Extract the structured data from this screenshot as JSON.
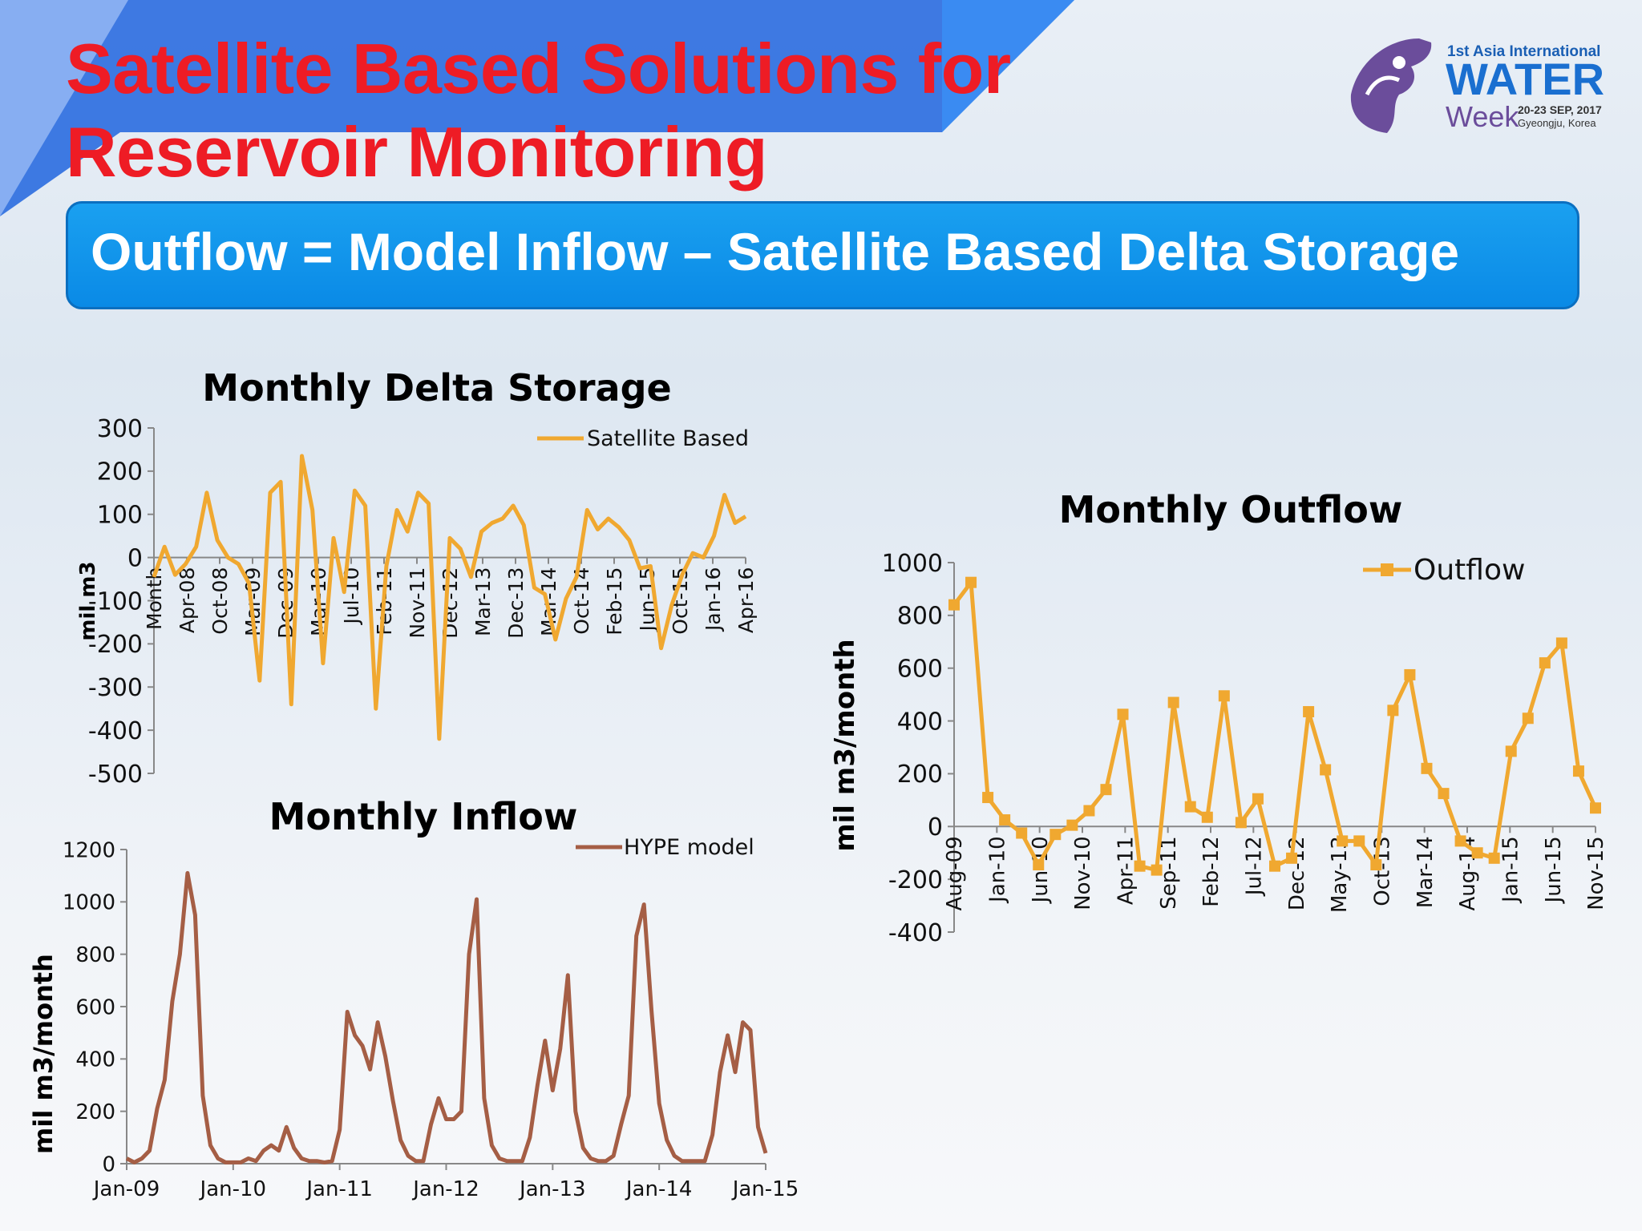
{
  "slide": {
    "title_line1": "Satellite Based Solutions for",
    "title_line2": "Reservoir Monitoring",
    "banner": "Outflow = Model Inflow – Satellite Based Delta Storage",
    "colors": {
      "title": "#ee1c25",
      "banner": "#0a8ae6",
      "corner": "#2f6fe0"
    }
  },
  "logo": {
    "line1": "1st Asia International",
    "line2": "WATER",
    "line3": "Week",
    "date": "20-23 SEP, 2017",
    "place": "Gyeongju, Korea"
  },
  "chart_data": [
    {
      "type": "line",
      "title": "Monthly Delta Storage",
      "ylabel": "mil m3",
      "ylim": [
        -500,
        300
      ],
      "yticks": [
        300,
        200,
        100,
        0,
        -100,
        -200,
        -300,
        -400,
        -500
      ],
      "x_tick_labels": [
        "Month",
        "Apr-08",
        "Oct-08",
        "Mar-09",
        "Dec-09",
        "Mar-10",
        "Jul-10",
        "Feb-11",
        "Nov-11",
        "Dec-12",
        "Mar-13",
        "Dec-13",
        "Mar-14",
        "Oct-14",
        "Feb-15",
        "Jun-15",
        "Oct-15",
        "Jan-16",
        "Apr-16"
      ],
      "legend": "top-right",
      "color": "#f0a830",
      "series": [
        {
          "name": "Satellite Based",
          "values": [
            -45,
            25,
            -40,
            -15,
            25,
            150,
            40,
            0,
            -15,
            -60,
            -285,
            150,
            175,
            -340,
            235,
            110,
            -245,
            45,
            -80,
            155,
            120,
            -350,
            -20,
            110,
            60,
            150,
            125,
            -420,
            45,
            20,
            -45,
            60,
            80,
            90,
            120,
            75,
            -70,
            -85,
            -190,
            -95,
            -45,
            110,
            65,
            90,
            70,
            40,
            -25,
            -20,
            -210,
            -110,
            -40,
            10,
            0,
            50,
            145,
            80,
            95
          ]
        }
      ]
    },
    {
      "type": "line",
      "title": "Monthly Inflow",
      "ylabel": "mil m3/month",
      "ylim": [
        0,
        1200
      ],
      "yticks": [
        1200,
        1000,
        800,
        600,
        400,
        200,
        0
      ],
      "x_tick_labels": [
        "Jan-09",
        "Jan-10",
        "Jan-11",
        "Jan-12",
        "Jan-13",
        "Jan-14",
        "Jan-15"
      ],
      "legend": "top-right",
      "color": "#a55e45",
      "series": [
        {
          "name": "HYPE model",
          "values": [
            20,
            5,
            20,
            50,
            210,
            320,
            620,
            800,
            1110,
            950,
            260,
            70,
            20,
            5,
            5,
            5,
            20,
            10,
            50,
            70,
            50,
            140,
            60,
            20,
            10,
            10,
            5,
            10,
            130,
            580,
            490,
            450,
            360,
            540,
            410,
            240,
            90,
            30,
            10,
            10,
            150,
            250,
            170,
            170,
            200,
            800,
            1010,
            250,
            70,
            20,
            10,
            10,
            10,
            100,
            300,
            470,
            280,
            440,
            720,
            200,
            60,
            20,
            10,
            10,
            30,
            150,
            260,
            870,
            990,
            580,
            230,
            90,
            30,
            10,
            10,
            10,
            10,
            110,
            350,
            490,
            350,
            540,
            510,
            140,
            40
          ]
        }
      ]
    },
    {
      "type": "line",
      "title": "Monthly Outflow",
      "ylabel": "mil m3/month",
      "ylim": [
        -400,
        1000
      ],
      "yticks": [
        1000,
        800,
        600,
        400,
        200,
        0,
        -200,
        -400
      ],
      "x_tick_labels": [
        "Aug-09",
        "Jan-10",
        "Jun-10",
        "Nov-10",
        "Apr-11",
        "Sep-11",
        "Feb-12",
        "Jul-12",
        "Dec-12",
        "May-13",
        "Oct-13",
        "Mar-14",
        "Aug-14",
        "Jan-15",
        "Jun-15",
        "Nov-15"
      ],
      "legend": "top-right",
      "color": "#f0a830",
      "series": [
        {
          "name": "Outflow",
          "values": [
            840,
            925,
            110,
            25,
            -25,
            -145,
            -30,
            5,
            60,
            140,
            425,
            -150,
            -165,
            470,
            75,
            35,
            495,
            15,
            105,
            -150,
            -120,
            435,
            215,
            -55,
            -55,
            -145,
            440,
            575,
            220,
            125,
            -55,
            -100,
            -120,
            285,
            410,
            620,
            695,
            210,
            70
          ]
        }
      ]
    }
  ]
}
